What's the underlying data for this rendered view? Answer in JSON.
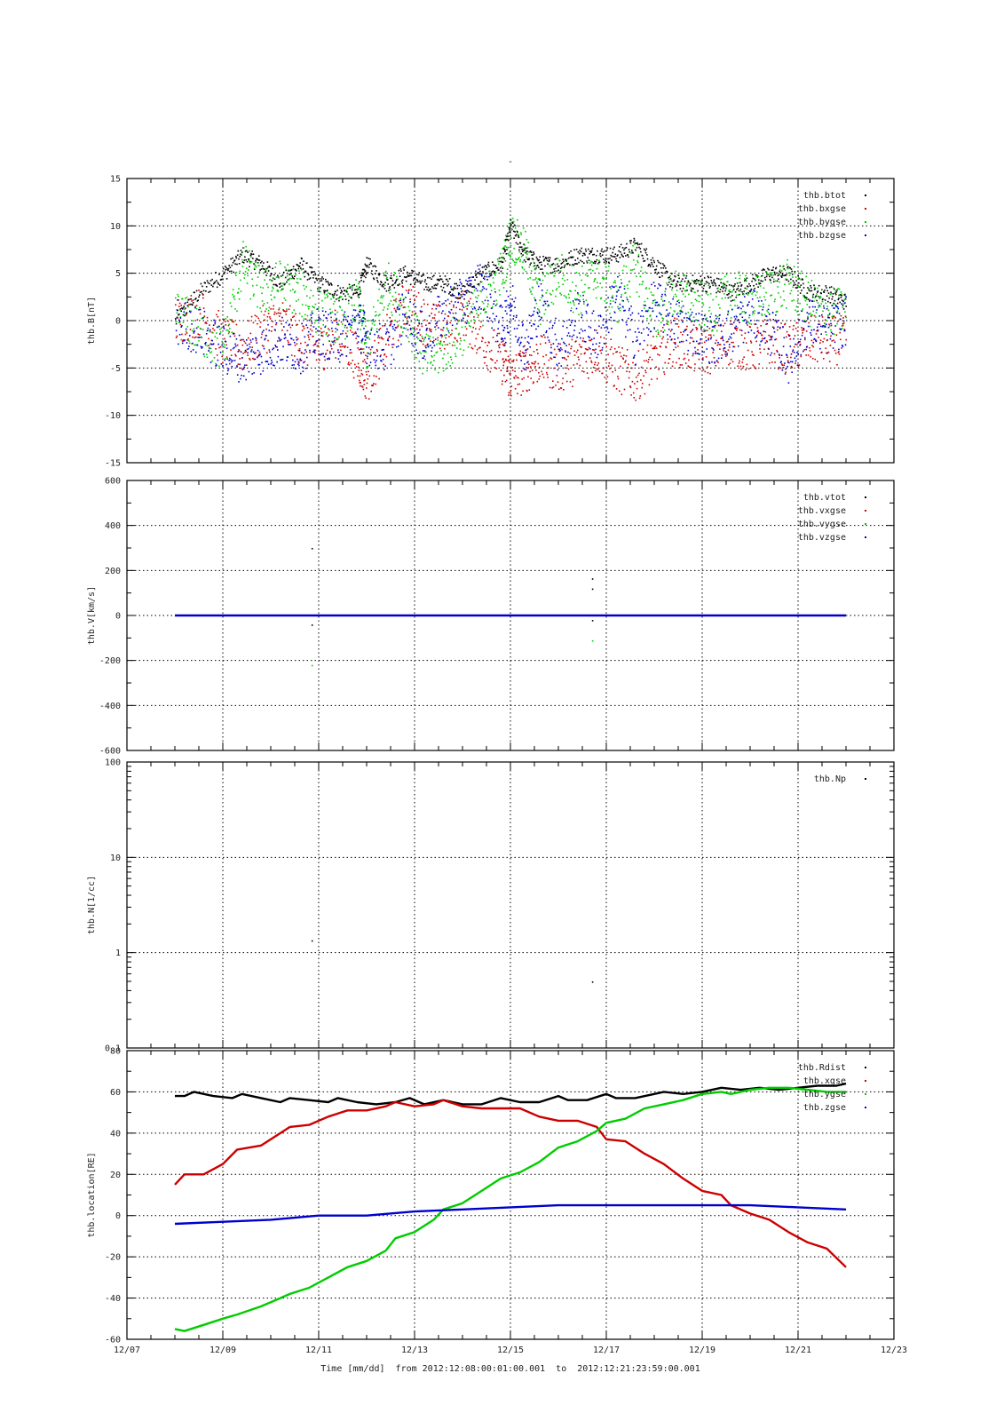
{
  "page": {
    "title": "-"
  },
  "footer": {
    "time_label": "Time [mm/dd]  from 2012:12:08:00:01:00.001  to  2012:12:21:23:59:00.001"
  },
  "x_axis": {
    "range_days": [
      7,
      23
    ],
    "ticks": [
      {
        "day": 7,
        "label": "12/07"
      },
      {
        "day": 9,
        "label": "12/09"
      },
      {
        "day": 11,
        "label": "12/11"
      },
      {
        "day": 13,
        "label": "12/13"
      },
      {
        "day": 15,
        "label": "12/15"
      },
      {
        "day": 17,
        "label": "12/17"
      },
      {
        "day": 19,
        "label": "12/19"
      },
      {
        "day": 21,
        "label": "12/21"
      },
      {
        "day": 23,
        "label": "12/23"
      }
    ]
  },
  "chart_data": [
    {
      "type": "scatter",
      "ylabel": "thb.B[nT]",
      "ylim": [
        -15,
        15
      ],
      "yticks": [
        -15,
        -10,
        -5,
        0,
        5,
        10,
        15
      ],
      "grid": true,
      "legend_position": "top-right",
      "series": [
        {
          "name": "thb.btot",
          "color": "#000000",
          "x": [
            8.0,
            8.5,
            9.0,
            9.4,
            9.8,
            10.2,
            10.6,
            11.0,
            11.4,
            11.8,
            12.0,
            12.4,
            12.8,
            13.2,
            13.6,
            14.0,
            14.4,
            14.8,
            15.0,
            15.3,
            15.6,
            16.0,
            16.4,
            16.8,
            17.2,
            17.6,
            18.0,
            18.4,
            18.8,
            19.2,
            19.6,
            20.0,
            20.4,
            20.8,
            21.2,
            21.6,
            22.0
          ],
          "y": [
            0,
            3,
            5,
            7,
            6,
            4,
            6,
            4,
            3,
            3,
            6,
            4,
            5,
            4,
            4,
            3,
            5,
            6,
            10,
            7,
            6,
            6,
            7,
            7,
            7,
            8,
            6,
            4,
            4,
            4,
            3,
            4,
            5,
            5,
            3,
            3,
            2
          ]
        },
        {
          "name": "thb.bxgse",
          "color": "#cc0000",
          "x": [
            8.0,
            8.5,
            9.0,
            9.4,
            9.8,
            10.2,
            10.6,
            11.0,
            11.4,
            11.8,
            12.0,
            12.4,
            12.8,
            13.2,
            13.6,
            14.0,
            14.4,
            14.8,
            15.0,
            15.3,
            15.6,
            16.0,
            16.4,
            16.8,
            17.2,
            17.6,
            18.0,
            18.4,
            18.8,
            19.2,
            19.6,
            20.0,
            20.4,
            20.8,
            21.2,
            21.6,
            22.0
          ],
          "y": [
            0,
            1,
            -2,
            -3,
            -1,
            0,
            -2,
            -3,
            -1,
            -4,
            -6,
            -2,
            2,
            0,
            -1,
            1,
            -2,
            -4,
            -6,
            -5,
            -4,
            -5,
            -4,
            -3,
            -5,
            -6,
            -4,
            -2,
            -3,
            -3,
            -2,
            -3,
            -2,
            -3,
            -2,
            -2,
            -2
          ]
        },
        {
          "name": "thb.bygse",
          "color": "#00cc00",
          "x": [
            8.0,
            8.5,
            9.0,
            9.4,
            9.8,
            10.2,
            10.6,
            11.0,
            11.4,
            11.8,
            12.0,
            12.4,
            12.8,
            13.2,
            13.6,
            14.0,
            14.4,
            14.8,
            15.0,
            15.3,
            15.6,
            16.0,
            16.4,
            16.8,
            17.2,
            17.6,
            18.0,
            18.4,
            18.8,
            19.2,
            19.6,
            20.0,
            20.4,
            20.8,
            21.2,
            21.6,
            22.0
          ],
          "y": [
            1,
            -1,
            -3,
            6,
            3,
            4,
            3,
            1,
            0,
            2,
            -3,
            4,
            1,
            -4,
            -3,
            -1,
            2,
            5,
            9,
            7,
            2,
            5,
            3,
            5,
            2,
            6,
            0,
            3,
            2,
            1,
            3,
            2,
            3,
            4,
            2,
            1,
            1
          ]
        },
        {
          "name": "thb.bzgse",
          "color": "#0000cc",
          "x": [
            8.0,
            8.5,
            9.0,
            9.4,
            9.8,
            10.2,
            10.6,
            11.0,
            11.4,
            11.8,
            12.0,
            12.4,
            12.8,
            13.2,
            13.6,
            14.0,
            14.4,
            14.8,
            15.0,
            15.3,
            15.6,
            16.0,
            16.4,
            16.8,
            17.2,
            17.6,
            18.0,
            18.4,
            18.8,
            19.2,
            19.6,
            20.0,
            20.4,
            20.8,
            21.2,
            21.6,
            22.0
          ],
          "y": [
            0,
            -1,
            -3,
            -4,
            -3,
            -2,
            -3,
            -1,
            -2,
            0,
            -2,
            -3,
            1,
            -2,
            1,
            2,
            4,
            -1,
            2,
            -3,
            2,
            -3,
            1,
            -2,
            3,
            -2,
            2,
            0,
            -1,
            -2,
            -1,
            1,
            -1,
            -4,
            0,
            -1,
            0
          ]
        }
      ]
    },
    {
      "type": "scatter",
      "ylabel": "thb.V[km/s]",
      "ylim": [
        -600,
        600
      ],
      "yticks": [
        -600,
        -400,
        -200,
        0,
        200,
        400,
        600
      ],
      "grid": true,
      "legend_position": "top-right",
      "series": [
        {
          "name": "thb.vtot",
          "color": "#000000",
          "x": [
            8.0,
            22.0,
            10.85,
            10.85,
            16.7,
            16.7,
            16.7
          ],
          "y": [
            0,
            0,
            300,
            -40,
            165,
            120,
            -20
          ]
        },
        {
          "name": "thb.vxgse",
          "color": "#cc0000",
          "x": [
            8.0,
            22.0
          ],
          "y": [
            0,
            0
          ]
        },
        {
          "name": "thb.vygse",
          "color": "#00cc00",
          "x": [
            8.0,
            22.0,
            10.85,
            16.7
          ],
          "y": [
            0,
            0,
            -220,
            -110
          ]
        },
        {
          "name": "thb.vzgse",
          "color": "#0000cc",
          "x": [
            8.0,
            22.0
          ],
          "y": [
            0,
            0
          ]
        }
      ]
    },
    {
      "type": "scatter",
      "ylabel": "thb.N[1/cc]",
      "ylim": [
        0.1,
        100
      ],
      "yscale": "log",
      "yticks": [
        0.1,
        1,
        10,
        100
      ],
      "grid": true,
      "legend_position": "top-right",
      "series": [
        {
          "name": "thb.Np",
          "color": "#000000",
          "x": [
            10.85,
            16.7
          ],
          "y": [
            1.35,
            0.5
          ]
        }
      ]
    },
    {
      "type": "line",
      "ylabel": "thb.location[RE]",
      "ylim": [
        -60,
        80
      ],
      "yticks": [
        -60,
        -40,
        -20,
        0,
        20,
        40,
        60,
        80
      ],
      "grid": true,
      "legend_position": "top-right",
      "series": [
        {
          "name": "thb.Rdist",
          "color": "#000000",
          "x": [
            8.0,
            8.2,
            8.4,
            8.8,
            9.2,
            9.4,
            9.8,
            10.2,
            10.4,
            10.8,
            11.2,
            11.4,
            11.8,
            12.2,
            12.6,
            12.9,
            13.2,
            13.6,
            14.0,
            14.4,
            14.8,
            15.2,
            15.6,
            16.0,
            16.2,
            16.6,
            17.0,
            17.2,
            17.6,
            18.0,
            18.2,
            18.6,
            19.0,
            19.4,
            19.8,
            20.2,
            20.6,
            21.0,
            21.4,
            21.8,
            22.0
          ],
          "y": [
            58,
            58,
            60,
            58,
            57,
            59,
            57,
            55,
            57,
            56,
            55,
            57,
            55,
            54,
            55,
            57,
            54,
            56,
            54,
            54,
            57,
            55,
            55,
            58,
            56,
            56,
            59,
            57,
            57,
            59,
            60,
            59,
            60,
            62,
            61,
            62,
            61,
            62,
            63,
            63,
            64
          ]
        },
        {
          "name": "thb.xgse",
          "color": "#cc0000",
          "x": [
            8.0,
            8.2,
            8.6,
            9.0,
            9.3,
            9.8,
            10.2,
            10.4,
            10.8,
            11.2,
            11.6,
            12.0,
            12.4,
            12.6,
            13.0,
            13.4,
            13.6,
            14.0,
            14.4,
            14.8,
            15.2,
            15.6,
            16.0,
            16.4,
            16.8,
            17.0,
            17.4,
            17.8,
            18.2,
            18.6,
            19.0,
            19.4,
            19.6,
            20.0,
            20.4,
            20.8,
            21.2,
            21.6,
            22.0
          ],
          "y": [
            15,
            20,
            20,
            25,
            32,
            34,
            40,
            43,
            44,
            48,
            51,
            51,
            53,
            55,
            53,
            54,
            56,
            53,
            52,
            52,
            52,
            48,
            46,
            46,
            43,
            37,
            36,
            30,
            25,
            18,
            12,
            10,
            5,
            1,
            -2,
            -8,
            -13,
            -16,
            -25
          ]
        },
        {
          "name": "thb.ygse",
          "color": "#00cc00",
          "x": [
            8.0,
            8.2,
            8.6,
            9.0,
            9.3,
            9.8,
            10.2,
            10.4,
            10.8,
            11.2,
            11.6,
            12.0,
            12.4,
            12.6,
            13.0,
            13.4,
            13.6,
            14.0,
            14.4,
            14.8,
            15.2,
            15.6,
            16.0,
            16.4,
            16.8,
            17.0,
            17.4,
            17.8,
            18.2,
            18.6,
            19.0,
            19.4,
            19.6,
            20.0,
            20.4,
            20.8,
            21.2,
            21.6,
            22.0
          ],
          "y": [
            -55,
            -56,
            -53,
            -50,
            -48,
            -44,
            -40,
            -38,
            -35,
            -30,
            -25,
            -22,
            -17,
            -11,
            -8,
            -2,
            3,
            6,
            12,
            18,
            21,
            26,
            33,
            36,
            41,
            45,
            47,
            52,
            54,
            56,
            59,
            60,
            59,
            61,
            62,
            62,
            61,
            60,
            60
          ]
        },
        {
          "name": "thb.zgse",
          "color": "#0000cc",
          "x": [
            8.0,
            9.0,
            10.0,
            11.0,
            12.0,
            13.0,
            14.0,
            15.0,
            16.0,
            17.0,
            18.0,
            19.0,
            20.0,
            21.0,
            22.0
          ],
          "y": [
            -4,
            -3,
            -2,
            0,
            0,
            2,
            3,
            4,
            5,
            5,
            5,
            5,
            5,
            4,
            3
          ]
        }
      ]
    }
  ]
}
